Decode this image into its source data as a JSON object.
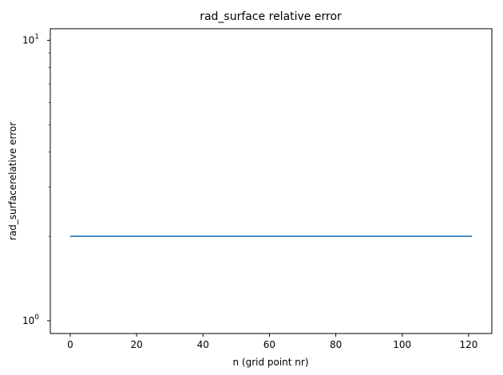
{
  "chart_data": {
    "type": "line",
    "title": "rad_surface relative error",
    "xlabel": "n (grid point nr)",
    "ylabel": "rad_surfacerelative error",
    "xlim": [
      -6,
      127
    ],
    "ylim": [
      0.9,
      11.0
    ],
    "yscale": "log",
    "grid": false,
    "x_ticks": [
      0,
      20,
      40,
      60,
      80,
      100,
      120
    ],
    "x_tick_labels": [
      "0",
      "20",
      "40",
      "60",
      "80",
      "100",
      "120"
    ],
    "y_major_ticks": [
      1,
      10
    ],
    "y_tick_labels": [
      {
        "base": "10",
        "exp": "0"
      },
      {
        "base": "10",
        "exp": "1"
      }
    ],
    "y_minor_ticks": [
      2,
      3,
      4,
      5,
      6,
      7,
      8,
      9
    ],
    "series": [
      {
        "color": "#1f77b4",
        "x": [
          0,
          121
        ],
        "y": [
          2.0,
          2.0
        ]
      }
    ]
  }
}
